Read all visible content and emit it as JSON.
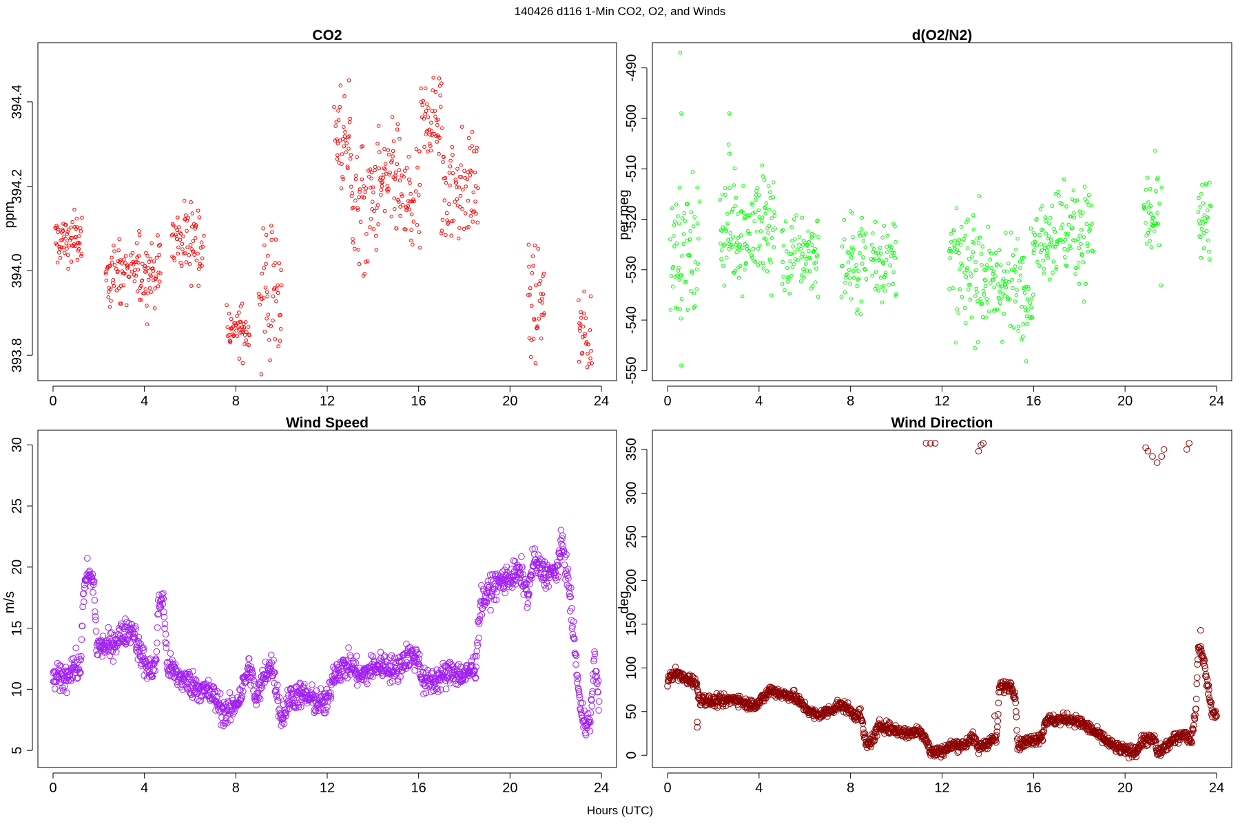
{
  "figure": {
    "title": "140426   d116   1-Min CO2, O2, and Winds",
    "shared_xlabel": "Hours (UTC)"
  },
  "chart_data": [
    {
      "id": "co2",
      "type": "scatter",
      "title": "CO2",
      "xlabel": "",
      "ylabel": "ppm",
      "xlim": [
        0,
        24
      ],
      "ylim": [
        393.74,
        394.54
      ],
      "xticks": [
        0,
        4,
        8,
        12,
        16,
        20,
        24
      ],
      "yticks": [
        393.8,
        394.0,
        394.2,
        394.4
      ],
      "ytick_labels": [
        "393.8",
        "394.0",
        "394.2",
        "394.4"
      ],
      "grid": false,
      "marker": "open-circle",
      "marker_size": 2.3,
      "color": "#ff0000",
      "segments": [
        [
          0.1,
          1.3,
          394.07,
          0.03
        ],
        [
          2.3,
          4.7,
          394.0,
          0.04
        ],
        [
          5.2,
          6.6,
          394.08,
          0.04
        ],
        [
          7.6,
          8.6,
          393.86,
          0.03
        ],
        [
          9.0,
          10.0,
          393.95,
          0.08
        ],
        [
          12.3,
          13.1,
          394.3,
          0.08
        ],
        [
          13.1,
          14.0,
          394.15,
          0.08
        ],
        [
          14.0,
          15.2,
          394.2,
          0.07
        ],
        [
          15.2,
          16.1,
          394.15,
          0.06
        ],
        [
          16.1,
          17.0,
          394.36,
          0.06
        ],
        [
          17.0,
          18.6,
          394.2,
          0.07
        ],
        [
          20.8,
          21.5,
          393.92,
          0.07
        ],
        [
          23.0,
          23.6,
          393.84,
          0.05
        ]
      ]
    },
    {
      "id": "o2",
      "type": "scatter",
      "title": "d(O2/N2)",
      "xlabel": "",
      "ylabel": "per meg",
      "xlim": [
        0,
        24
      ],
      "ylim": [
        -552,
        -485
      ],
      "xticks": [
        0,
        4,
        8,
        12,
        16,
        20,
        24
      ],
      "yticks": [
        -550,
        -540,
        -530,
        -520,
        -510,
        -500,
        -490
      ],
      "ytick_labels": [
        "-550",
        "-540",
        "-530",
        "-520",
        "-510",
        "-500",
        "-490"
      ],
      "grid": false,
      "marker": "open-circle",
      "marker_size": 2.3,
      "color": "#00ff00",
      "segments": [
        [
          0.1,
          1.4,
          -526,
          7
        ],
        [
          2.3,
          4.7,
          -522,
          6
        ],
        [
          5.0,
          6.6,
          -527,
          4
        ],
        [
          7.6,
          8.7,
          -529,
          5
        ],
        [
          8.9,
          10.0,
          -527,
          4
        ],
        [
          12.3,
          13.9,
          -530,
          6
        ],
        [
          13.9,
          16.0,
          -533,
          5
        ],
        [
          16.0,
          16.7,
          -524,
          4
        ],
        [
          16.7,
          18.6,
          -522,
          5
        ],
        [
          20.8,
          21.6,
          -520,
          5
        ],
        [
          23.2,
          23.8,
          -521,
          5
        ]
      ],
      "outliers": [
        [
          0.55,
          -487
        ],
        [
          0.6,
          -499
        ],
        [
          2.7,
          -499
        ],
        [
          2.7,
          -507
        ],
        [
          0.6,
          -549
        ]
      ]
    },
    {
      "id": "wind_speed",
      "type": "scatter",
      "title": "Wind Speed",
      "xlabel": "",
      "ylabel": "m/s",
      "xlim": [
        0,
        24
      ],
      "ylim": [
        3.6,
        31.2
      ],
      "xticks": [
        0,
        4,
        8,
        12,
        16,
        20,
        24
      ],
      "yticks": [
        5,
        10,
        15,
        20,
        25,
        30
      ],
      "ytick_labels": [
        "5",
        "10",
        "15",
        "20",
        "25",
        "30"
      ],
      "grid": false,
      "marker": "open-circle",
      "marker_size": 4.3,
      "color": "#a020f0",
      "trace": [
        [
          0.0,
          11.0
        ],
        [
          0.5,
          10.8
        ],
        [
          0.9,
          12.0
        ],
        [
          1.2,
          11.5
        ],
        [
          1.3,
          17.0
        ],
        [
          1.5,
          19.5
        ],
        [
          1.8,
          18.5
        ],
        [
          1.9,
          13.5
        ],
        [
          2.5,
          13.5
        ],
        [
          3.0,
          14.5
        ],
        [
          3.5,
          15.0
        ],
        [
          3.8,
          13.0
        ],
        [
          4.2,
          11.5
        ],
        [
          4.5,
          12.0
        ],
        [
          4.6,
          16.5
        ],
        [
          4.8,
          17.8
        ],
        [
          5.0,
          12.0
        ],
        [
          5.5,
          11.0
        ],
        [
          6.0,
          10.5
        ],
        [
          6.5,
          10.0
        ],
        [
          7.0,
          9.5
        ],
        [
          7.5,
          8.0
        ],
        [
          7.8,
          8.3
        ],
        [
          8.2,
          9.5
        ],
        [
          8.6,
          12.0
        ],
        [
          8.9,
          9.0
        ],
        [
          9.3,
          11.5
        ],
        [
          9.6,
          12.0
        ],
        [
          10.0,
          7.5
        ],
        [
          10.4,
          9.5
        ],
        [
          11.0,
          9.5
        ],
        [
          11.5,
          9.0
        ],
        [
          12.0,
          8.8
        ],
        [
          12.3,
          11.5
        ],
        [
          13.0,
          12.0
        ],
        [
          13.5,
          11.0
        ],
        [
          14.0,
          11.8
        ],
        [
          14.5,
          12.0
        ],
        [
          15.0,
          11.5
        ],
        [
          15.5,
          12.8
        ],
        [
          16.0,
          12.5
        ],
        [
          16.2,
          10.5
        ],
        [
          16.8,
          10.8
        ],
        [
          17.5,
          11.5
        ],
        [
          18.0,
          11.0
        ],
        [
          18.5,
          12.0
        ],
        [
          18.7,
          17.0
        ],
        [
          19.3,
          18.5
        ],
        [
          20.0,
          19.2
        ],
        [
          20.5,
          19.5
        ],
        [
          20.8,
          17.5
        ],
        [
          21.0,
          20.5
        ],
        [
          21.5,
          19.5
        ],
        [
          22.0,
          19.5
        ],
        [
          22.3,
          22.0
        ],
        [
          22.6,
          18.0
        ],
        [
          22.8,
          14.0
        ],
        [
          23.1,
          8.0
        ],
        [
          23.5,
          7.0
        ],
        [
          23.7,
          12.5
        ],
        [
          23.9,
          9.0
        ]
      ]
    },
    {
      "id": "wind_direction",
      "type": "scatter",
      "title": "Wind Direction",
      "xlabel": "",
      "ylabel": "deg",
      "xlim": [
        0,
        24
      ],
      "ylim": [
        -14,
        372
      ],
      "xticks": [
        0,
        4,
        8,
        12,
        16,
        20,
        24
      ],
      "yticks": [
        0,
        50,
        100,
        150,
        200,
        250,
        300,
        350
      ],
      "ytick_labels": [
        "0",
        "50",
        "100",
        "150",
        "200",
        "250",
        "300",
        "350"
      ],
      "grid": false,
      "marker": "open-circle",
      "marker_size": 4.3,
      "color": "#8b0000",
      "trace": [
        [
          0.0,
          85
        ],
        [
          0.3,
          95
        ],
        [
          0.7,
          88
        ],
        [
          1.2,
          85
        ],
        [
          1.4,
          65
        ],
        [
          1.8,
          62
        ],
        [
          2.5,
          62
        ],
        [
          3.0,
          65
        ],
        [
          3.5,
          58
        ],
        [
          4.0,
          60
        ],
        [
          4.5,
          75
        ],
        [
          5.0,
          70
        ],
        [
          5.5,
          68
        ],
        [
          6.0,
          55
        ],
        [
          6.5,
          45
        ],
        [
          7.0,
          50
        ],
        [
          7.5,
          58
        ],
        [
          7.8,
          55
        ],
        [
          8.2,
          45
        ],
        [
          8.4,
          50
        ],
        [
          8.7,
          10
        ],
        [
          9.0,
          20
        ],
        [
          9.3,
          35
        ],
        [
          9.8,
          30
        ],
        [
          10.5,
          25
        ],
        [
          11.0,
          28
        ],
        [
          11.3,
          20
        ],
        [
          11.5,
          3
        ],
        [
          12.0,
          5
        ],
        [
          12.5,
          12
        ],
        [
          13.0,
          12
        ],
        [
          13.3,
          22
        ],
        [
          13.6,
          8
        ],
        [
          14.0,
          15
        ],
        [
          14.4,
          20
        ],
        [
          14.5,
          78
        ],
        [
          15.0,
          80
        ],
        [
          15.2,
          70
        ],
        [
          15.3,
          12
        ],
        [
          16.0,
          18
        ],
        [
          16.4,
          22
        ],
        [
          16.5,
          40
        ],
        [
          17.0,
          40
        ],
        [
          17.5,
          42
        ],
        [
          18.0,
          38
        ],
        [
          18.5,
          30
        ],
        [
          19.0,
          20
        ],
        [
          19.5,
          10
        ],
        [
          20.0,
          5
        ],
        [
          20.5,
          5
        ],
        [
          20.8,
          18
        ],
        [
          21.3,
          18
        ],
        [
          21.4,
          2
        ],
        [
          22.0,
          15
        ],
        [
          22.5,
          25
        ],
        [
          22.9,
          18
        ],
        [
          23.1,
          55
        ],
        [
          23.2,
          125
        ],
        [
          23.4,
          115
        ],
        [
          23.6,
          80
        ],
        [
          23.8,
          50
        ],
        [
          24.0,
          45
        ]
      ],
      "outliers": [
        [
          11.3,
          357
        ],
        [
          11.5,
          357
        ],
        [
          11.7,
          357
        ],
        [
          13.6,
          348
        ],
        [
          13.7,
          355
        ],
        [
          13.8,
          357
        ],
        [
          20.9,
          352
        ],
        [
          21.0,
          348
        ],
        [
          21.2,
          342
        ],
        [
          21.4,
          335
        ],
        [
          21.6,
          342
        ],
        [
          21.7,
          350
        ],
        [
          22.7,
          350
        ],
        [
          22.8,
          357
        ],
        [
          23.3,
          143
        ],
        [
          1.3,
          32
        ],
        [
          1.3,
          38
        ],
        [
          14.3,
          45
        ]
      ]
    }
  ]
}
